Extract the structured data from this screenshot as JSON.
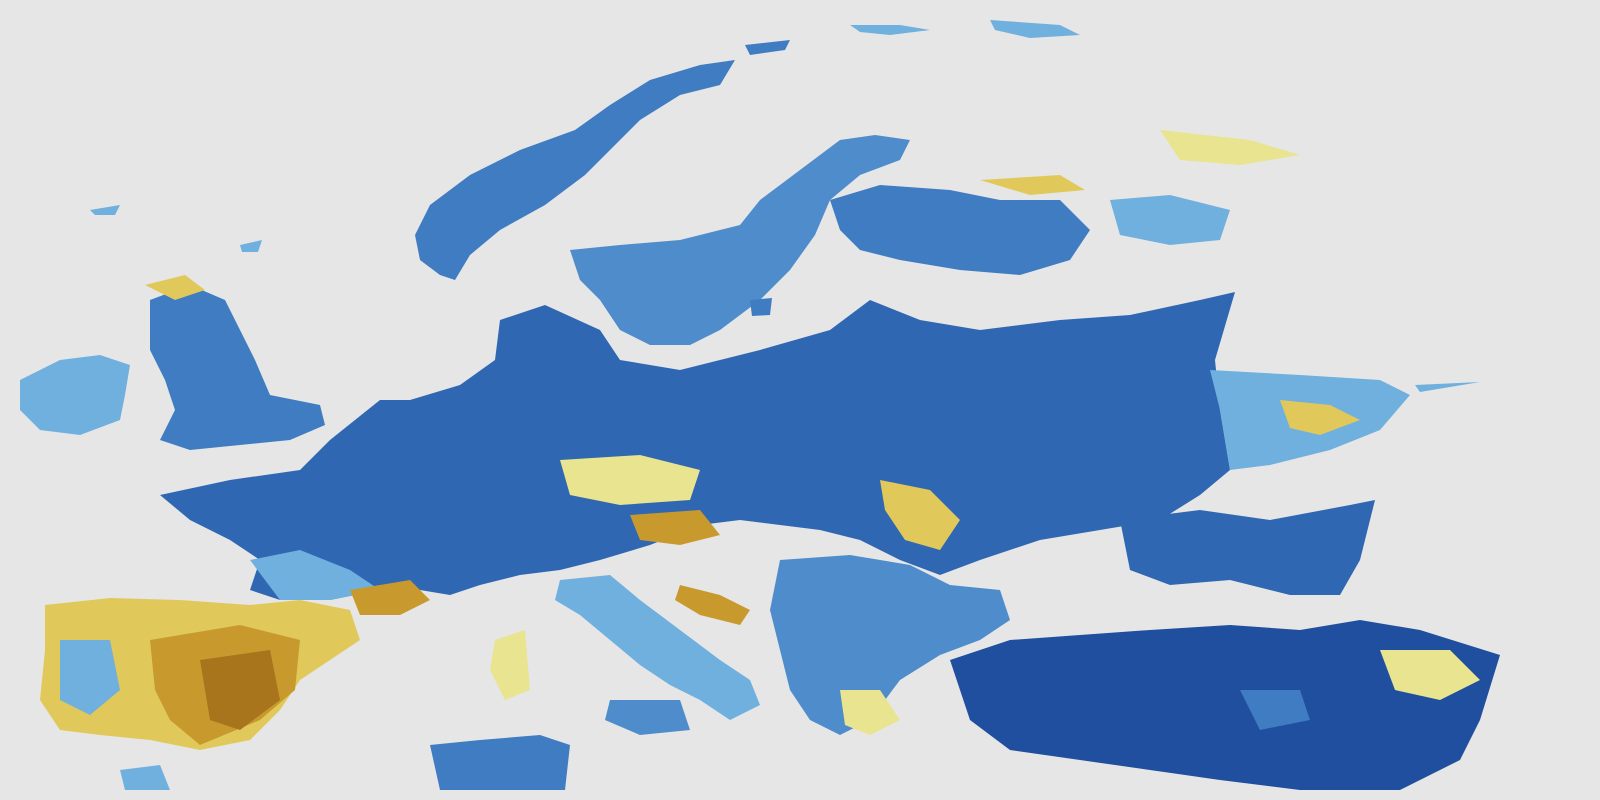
{
  "map": {
    "background": "#e6e6e6",
    "palette": {
      "deep_blue": "#1f4f9e",
      "mid_blue": "#3f7cc2",
      "light_blue": "#6fb0de",
      "pale_yellow": "#e9e48f",
      "yellow": "#e0c95a",
      "ochre": "#c89a2e",
      "brown": "#a8741c"
    },
    "layer": "soil-moisture-anomaly"
  }
}
